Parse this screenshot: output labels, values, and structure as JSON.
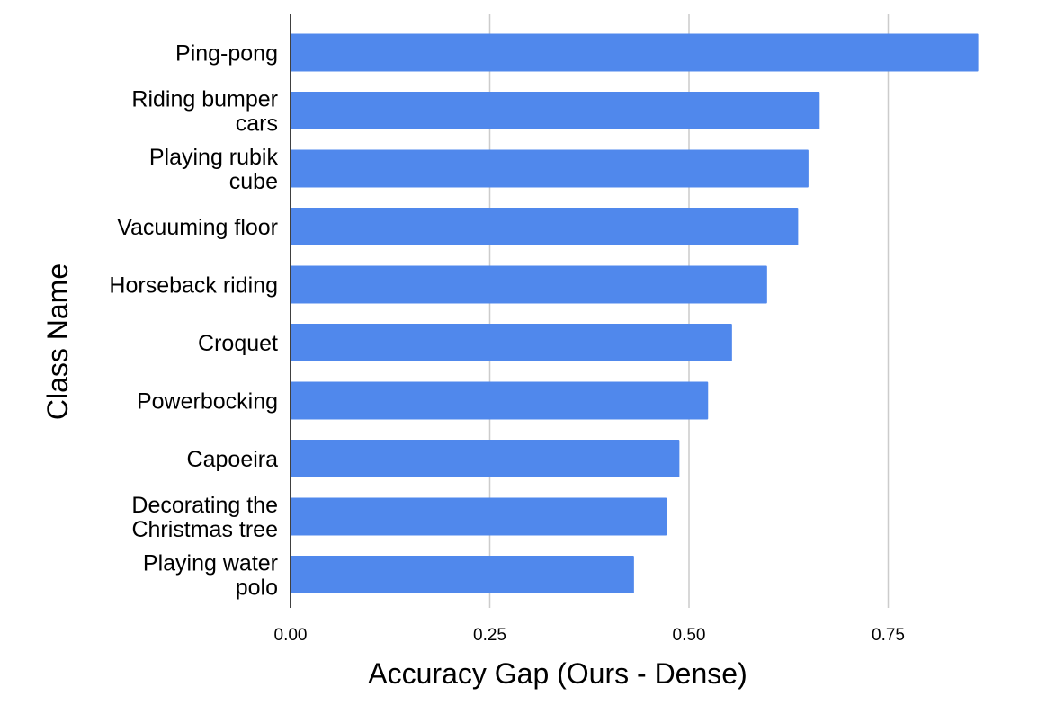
{
  "chart_data": {
    "type": "bar",
    "orientation": "horizontal",
    "title": "",
    "xlabel": "Accuracy Gap (Ours - Dense)",
    "ylabel": "Class Name",
    "xlim": [
      0,
      0.9
    ],
    "xticks": [
      "0.00",
      "0.25",
      "0.50",
      "0.75"
    ],
    "xtick_values": [
      0,
      0.25,
      0.5,
      0.75
    ],
    "grid": "vertical",
    "bar_color": "#5088EC",
    "categories": [
      [
        "Ping-pong"
      ],
      [
        "Riding bumper",
        "cars"
      ],
      [
        "Playing rubik",
        "cube"
      ],
      [
        "Vacuuming floor"
      ],
      [
        "Horseback riding"
      ],
      [
        "Croquet"
      ],
      [
        "Powerbocking"
      ],
      [
        "Capoeira"
      ],
      [
        "Decorating the",
        "Christmas tree"
      ],
      [
        "Playing water",
        "polo"
      ]
    ],
    "values": [
      0.863,
      0.664,
      0.65,
      0.637,
      0.598,
      0.554,
      0.524,
      0.488,
      0.472,
      0.431
    ]
  }
}
